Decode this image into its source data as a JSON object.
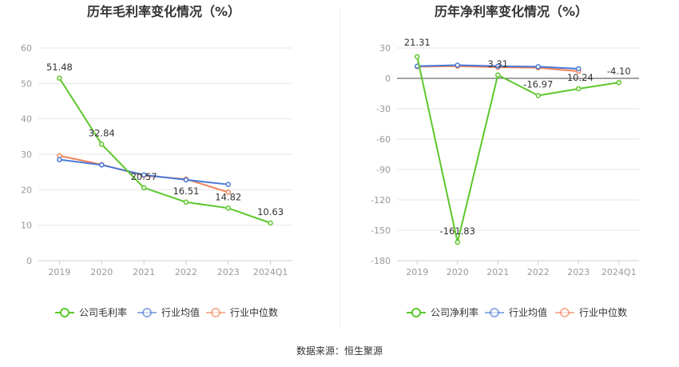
{
  "footer": {
    "source_label": "数据来源：恒生聚源"
  },
  "chart_data": [
    {
      "type": "line",
      "title": "历年毛利率变化情况（%）",
      "categories": [
        "2019",
        "2020",
        "2021",
        "2022",
        "2023",
        "2024Q1"
      ],
      "ylim": [
        0,
        60
      ],
      "yticks": [
        0,
        10,
        20,
        30,
        40,
        50,
        60
      ],
      "grid": true,
      "legend_position": "bottom",
      "series": [
        {
          "name": "公司毛利率",
          "color": "#5cc72a",
          "values": [
            51.48,
            32.84,
            20.57,
            16.51,
            14.82,
            10.63
          ],
          "labels": [
            "51.48",
            "32.84",
            "20.57",
            "16.51",
            "14.82",
            "10.63"
          ]
        },
        {
          "name": "行业均值",
          "color": "#4a78d6",
          "values": [
            28.5,
            27.0,
            24.2,
            22.8,
            21.5,
            null
          ]
        },
        {
          "name": "行业中位数",
          "color": "#f0835a",
          "values": [
            29.6,
            27.1,
            24.0,
            23.0,
            19.3,
            null
          ]
        }
      ]
    },
    {
      "type": "line",
      "title": "历年净利率变化情况（%）",
      "categories": [
        "2019",
        "2020",
        "2021",
        "2022",
        "2023",
        "2024Q1"
      ],
      "ylim": [
        -180,
        30
      ],
      "yticks": [
        30,
        0,
        -30,
        -60,
        -90,
        -120,
        -150,
        -180
      ],
      "grid": true,
      "legend_position": "bottom",
      "series": [
        {
          "name": "公司净利率",
          "color": "#5cc72a",
          "values": [
            21.31,
            -161.83,
            3.31,
            -16.97,
            -10.24,
            -4.1
          ],
          "labels": [
            "21.31",
            "-161.83",
            "3.31",
            "-16.97",
            "-10.24",
            "-4.10"
          ]
        },
        {
          "name": "行业均值",
          "color": "#4a78d6",
          "values": [
            12.0,
            13.0,
            12.0,
            11.5,
            9.5,
            null
          ]
        },
        {
          "name": "行业中位数",
          "color": "#f0835a",
          "values": [
            11.5,
            12.0,
            11.0,
            10.5,
            7.0,
            null
          ]
        }
      ]
    }
  ]
}
